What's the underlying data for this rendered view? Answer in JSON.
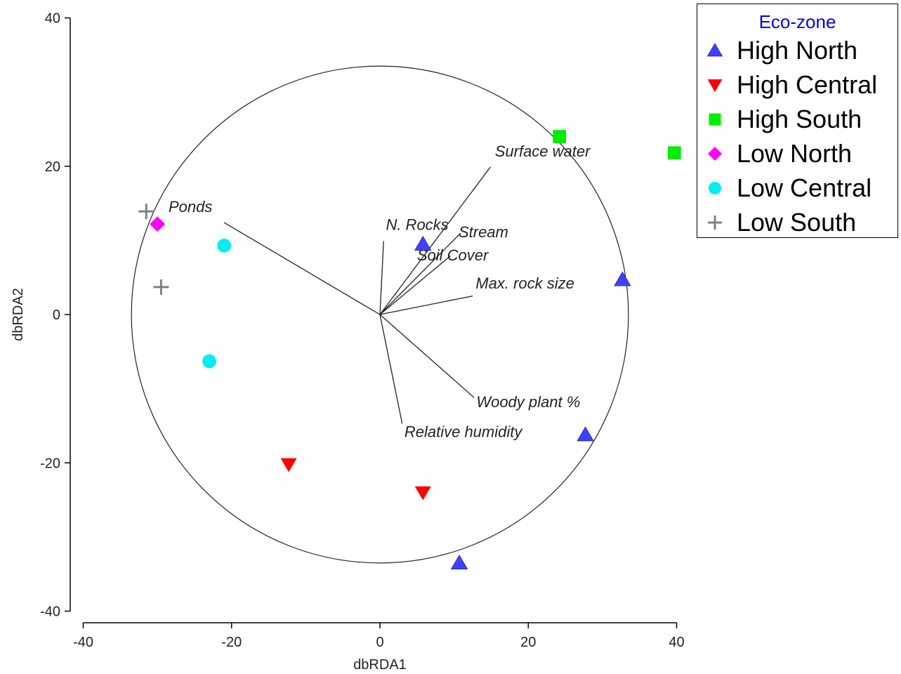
{
  "chart_data": {
    "type": "scatter",
    "xlabel": "dbRDA1",
    "ylabel": "dbRDA2",
    "xlim": [
      -40,
      40
    ],
    "ylim": [
      -40,
      40
    ],
    "xticks": [
      -40,
      -20,
      0,
      20,
      40
    ],
    "yticks": [
      -40,
      -20,
      0,
      20,
      40
    ],
    "circle": {
      "center": [
        0,
        0
      ],
      "radius": 33.5
    },
    "legend": {
      "title": "Eco-zone",
      "position": "top-right"
    },
    "series": [
      {
        "name": "High North",
        "marker": "triangle-up",
        "color": "#4040ff",
        "points": [
          [
            5.8,
            9.5
          ],
          [
            32.7,
            4.7
          ],
          [
            27.7,
            -16.2
          ],
          [
            10.7,
            -33.5
          ]
        ]
      },
      {
        "name": "High Central",
        "marker": "triangle-down",
        "color": "#ff0000",
        "points": [
          [
            -12.3,
            -20.2
          ],
          [
            5.8,
            -24.0
          ]
        ]
      },
      {
        "name": "High South",
        "marker": "square",
        "color": "#00ee00",
        "points": [
          [
            24.2,
            24.0
          ],
          [
            39.7,
            21.8
          ]
        ]
      },
      {
        "name": "Low North",
        "marker": "diamond",
        "color": "#ff00ff",
        "points": [
          [
            -30.0,
            12.2
          ]
        ]
      },
      {
        "name": "Low Central",
        "marker": "circle",
        "color": "#00eeee",
        "points": [
          [
            -21.0,
            9.3
          ],
          [
            -23.0,
            -6.3
          ]
        ]
      },
      {
        "name": "Low South",
        "marker": "plus",
        "color": "#808080",
        "points": [
          [
            -31.5,
            13.9
          ],
          [
            -29.5,
            3.7
          ]
        ]
      }
    ],
    "vectors": [
      {
        "label": "Surface water",
        "end": [
          14.9,
          19.9
        ],
        "label_pos": [
          15.5,
          21.3
        ]
      },
      {
        "label": "Ponds",
        "end": [
          -21.0,
          12.4
        ],
        "label_pos": [
          -28.5,
          13.8
        ]
      },
      {
        "label": "N. Rocks",
        "end": [
          0.5,
          9.9
        ],
        "label_pos": [
          0.8,
          11.4
        ]
      },
      {
        "label": "Stream",
        "end": [
          10.9,
          11.0
        ],
        "label_pos": [
          10.6,
          10.4
        ]
      },
      {
        "label": "Soil Cover",
        "end": [
          9.5,
          7.9
        ],
        "label_pos": [
          5.0,
          7.3
        ]
      },
      {
        "label": "Max. rock size",
        "end": [
          12.5,
          2.5
        ],
        "label_pos": [
          12.9,
          3.5
        ]
      },
      {
        "label": "Woody plant %",
        "end": [
          12.7,
          -11.2
        ],
        "label_pos": [
          13.0,
          -12.5
        ]
      },
      {
        "label": "Relative humidity",
        "end": [
          3.0,
          -14.7
        ],
        "label_pos": [
          3.3,
          -16.5
        ]
      }
    ]
  }
}
